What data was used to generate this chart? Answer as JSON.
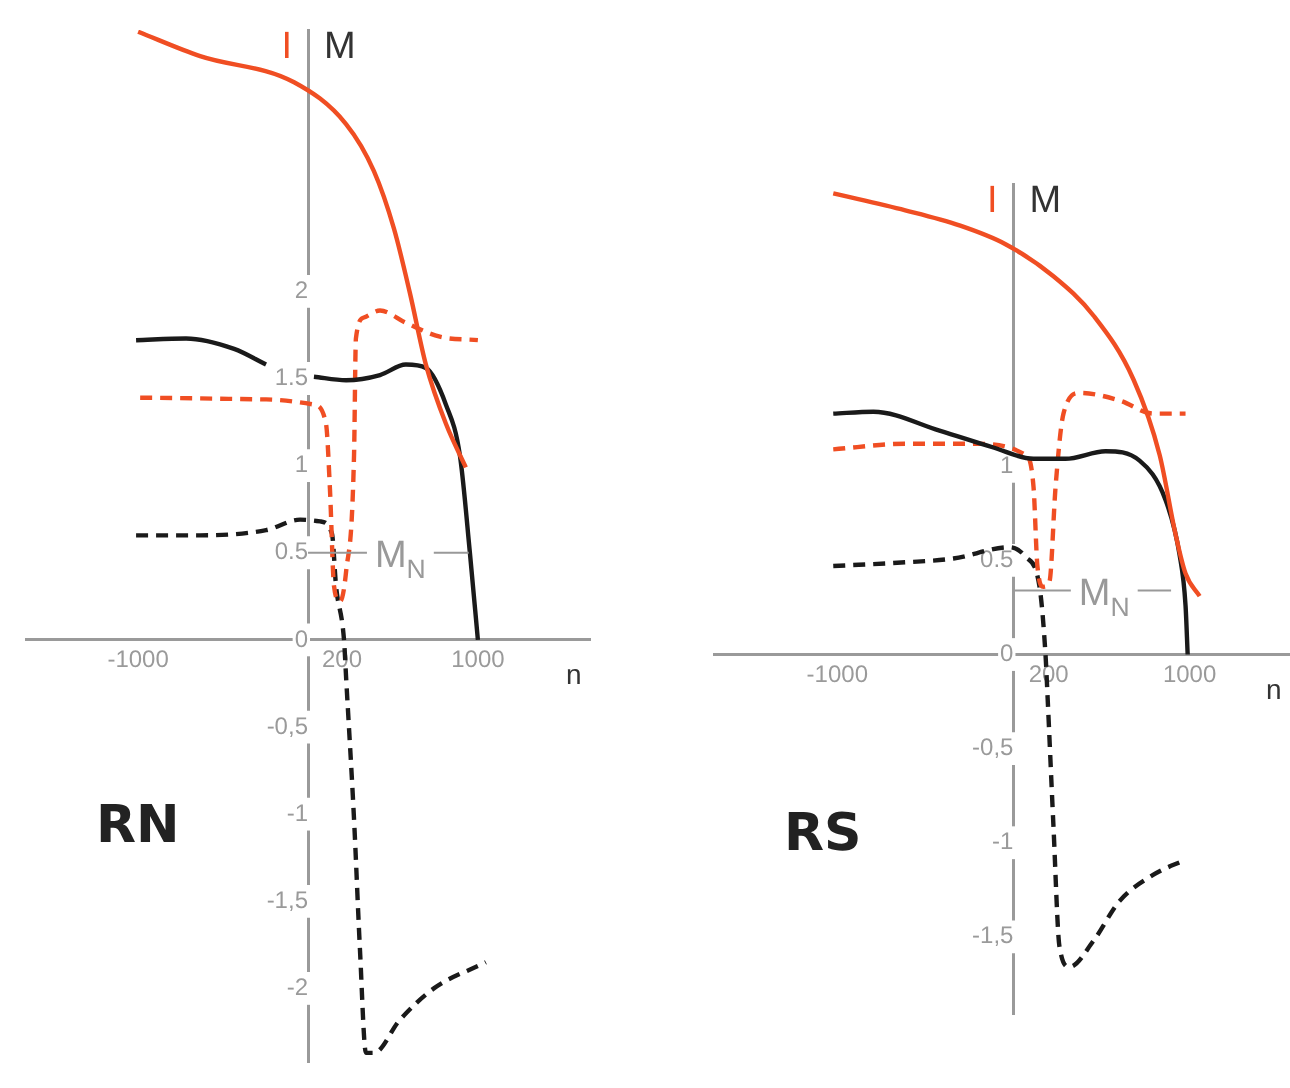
{
  "chart_data": [
    {
      "type": "line",
      "title": "RN",
      "xlabel": "n",
      "ylabel": "M",
      "annotations": [
        "I"
      ],
      "marker": "none",
      "xlim": [
        -1660,
        1660
      ],
      "ylim": [
        -2.42,
        3.5
      ],
      "xticks": [
        -1000,
        200,
        1000
      ],
      "yticks": [
        {
          "value": -2,
          "label": "-2"
        },
        {
          "value": -1.5,
          "label": "-1,5"
        },
        {
          "value": -1,
          "label": "-1"
        },
        {
          "value": -0.5,
          "label": "-0,5"
        },
        0,
        0.5,
        1,
        1.5,
        2
      ],
      "ref_lines": [
        {
          "axis": "y",
          "value": 0.5,
          "label": "M$_{N}$",
          "color": "#999999"
        }
      ],
      "series": [
        {
          "color": "#f04e23",
          "line_style": "solid",
          "x": [
            -1000,
            -635,
            -82,
            224,
            388,
            506,
            600,
            694,
            812,
            929
          ],
          "values": [
            3.49,
            3.35,
            3.2,
            2.96,
            2.69,
            2.36,
            1.99,
            1.58,
            1.24,
            0.99
          ]
        },
        {
          "color": "#1a1a1a",
          "line_style": "solid",
          "x": [
            -1012,
            -718,
            -435,
            -247,
            -100,
            35,
            224,
            424,
            576,
            694,
            812,
            894,
            953,
            1000
          ],
          "values": [
            1.72,
            1.73,
            1.67,
            1.58,
            null,
            1.51,
            1.49,
            1.52,
            1.58,
            1.56,
            1.35,
            1.06,
            0.5,
            0
          ]
        },
        {
          "color": "#f04e23",
          "line_style": "dashed",
          "x": [
            -988,
            -247,
            35,
            106,
            129,
            153,
            188,
            224,
            271,
            282,
            329,
            424,
            576,
            776,
            1000
          ],
          "values": [
            1.39,
            1.38,
            1.35,
            1.24,
            0.87,
            0.31,
            0.22,
            0.39,
            1.06,
            1.73,
            1.85,
            1.89,
            1.82,
            1.74,
            1.72
          ]
        },
        {
          "color": "#1a1a1a",
          "line_style": "dashed",
          "x": [
            -1012,
            -635,
            -247,
            -47,
            71,
            141,
            165,
            212,
            224,
            271,
            306,
            341,
            388,
            541,
            741,
            1047
          ],
          "values": [
            0.6,
            0.6,
            0.63,
            0.69,
            0.68,
            0.61,
            0.31,
            0,
            -0.21,
            -1.03,
            -1.78,
            -2.37,
            -2.37,
            -2.18,
            -2.0,
            -1.85
          ]
        }
      ]
    },
    {
      "type": "line",
      "title": "RS",
      "xlabel": "n",
      "ylabel": "M",
      "annotations": [
        "I"
      ],
      "marker": "none",
      "xlim": [
        -1700,
        1570
      ],
      "ylim": [
        -1.91,
        2.5
      ],
      "xticks": [
        -1000,
        200,
        1000
      ],
      "yticks": [
        {
          "value": -1.5,
          "label": "-1,5"
        },
        {
          "value": -1,
          "label": "-1"
        },
        {
          "value": -0.5,
          "label": "-0,5"
        },
        0,
        0.5,
        1
      ],
      "ref_lines": [
        {
          "axis": "y",
          "value": 0.34,
          "label": "M$_{N}$",
          "color": "#999999"
        }
      ],
      "series": [
        {
          "color": "#f04e23",
          "line_style": "solid",
          "x": [
            -1023,
            -614,
            -307,
            -45,
            227,
            455,
            682,
            830,
            920,
            977,
            1057
          ],
          "values": [
            2.45,
            2.36,
            2.28,
            2.18,
            2.01,
            1.8,
            1.46,
            1.06,
            0.64,
            0.43,
            0.31
          ]
        },
        {
          "color": "#1a1a1a",
          "line_style": "solid",
          "x": [
            -1023,
            -795,
            -420,
            -114,
            114,
            295,
            523,
            716,
            864,
            943,
            977,
            989
          ],
          "values": [
            1.28,
            1.29,
            1.19,
            1.1,
            1.04,
            1.04,
            1.08,
            1.03,
            0.82,
            0.53,
            0.26,
            0
          ]
        },
        {
          "color": "#f04e23",
          "line_style": "dashed",
          "x": [
            -1023,
            -614,
            -227,
            68,
            114,
            136,
            170,
            205,
            239,
            284,
            375,
            602,
            795,
            977
          ],
          "values": [
            1.09,
            1.12,
            1.12,
            1.06,
            0.89,
            0.47,
            0.36,
            0.39,
            0.89,
            1.28,
            1.39,
            1.35,
            1.28,
            1.28
          ]
        },
        {
          "color": "#1a1a1a",
          "line_style": "dashed",
          "x": [
            -1023,
            -614,
            -341,
            -23,
            68,
            148,
            182,
            193,
            227,
            261,
            318,
            455,
            602,
            795,
            977
          ],
          "values": [
            0.47,
            0.49,
            0.51,
            0.57,
            0.52,
            0.36,
            0,
            -0.21,
            -0.91,
            -1.55,
            -1.66,
            -1.52,
            -1.31,
            -1.17,
            -1.09
          ]
        }
      ]
    }
  ]
}
